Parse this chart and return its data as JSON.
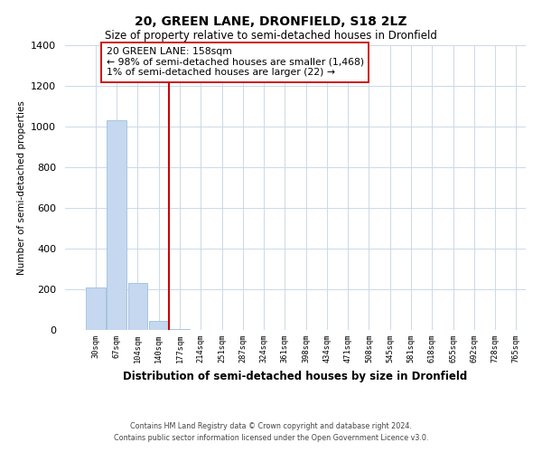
{
  "title": "20, GREEN LANE, DRONFIELD, S18 2LZ",
  "subtitle": "Size of property relative to semi-detached houses in Dronfield",
  "xlabel": "Distribution of semi-detached houses by size in Dronfield",
  "ylabel": "Number of semi-detached properties",
  "bar_values": [
    210,
    1030,
    230,
    45,
    5,
    2,
    1,
    0,
    0,
    0,
    0,
    0,
    0,
    0,
    0,
    0,
    0,
    0,
    0,
    0
  ],
  "bar_labels": [
    "30sqm",
    "67sqm",
    "104sqm",
    "140sqm",
    "177sqm",
    "214sqm",
    "251sqm",
    "287sqm",
    "324sqm",
    "361sqm",
    "398sqm",
    "434sqm",
    "471sqm",
    "508sqm",
    "545sqm",
    "581sqm",
    "618sqm",
    "655sqm",
    "692sqm",
    "728sqm",
    "765sqm"
  ],
  "bar_color": "#c5d8f0",
  "bar_edge_color": "#a8c4e0",
  "marker_color": "#cc0000",
  "annotation_line1": "20 GREEN LANE: 158sqm",
  "annotation_line2": "← 98% of semi-detached houses are smaller (1,468)",
  "annotation_line3": "1% of semi-detached houses are larger (22) →",
  "annotation_box_color": "#ffffff",
  "annotation_box_edge": "#cc0000",
  "ylim": [
    0,
    1400
  ],
  "yticks": [
    0,
    200,
    400,
    600,
    800,
    1000,
    1200,
    1400
  ],
  "footer_line1": "Contains HM Land Registry data © Crown copyright and database right 2024.",
  "footer_line2": "Contains public sector information licensed under the Open Government Licence v3.0.",
  "background_color": "#ffffff",
  "grid_color": "#ccd8e8"
}
